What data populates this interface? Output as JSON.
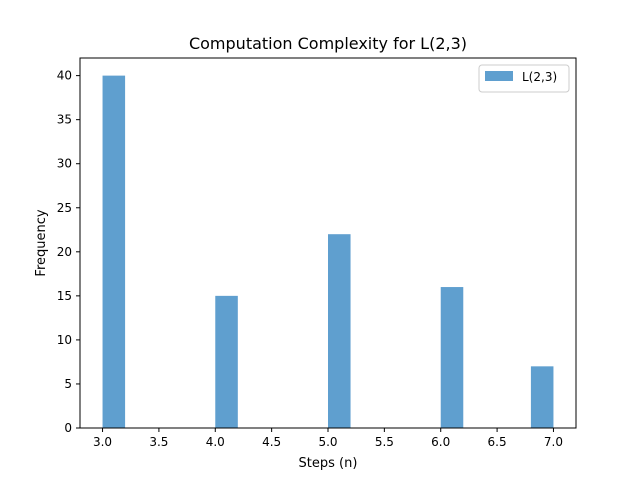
{
  "chart_data": {
    "type": "bar",
    "title": "Computation Complexity for L(2,3)",
    "xlabel": "Steps (n)",
    "ylabel": "Frequency",
    "xlim": [
      2.8,
      7.2
    ],
    "ylim": [
      0,
      42
    ],
    "xticks": [
      3.0,
      3.5,
      4.0,
      4.5,
      5.0,
      5.5,
      6.0,
      6.5,
      7.0
    ],
    "xtick_labels": [
      "3.0",
      "3.5",
      "4.0",
      "4.5",
      "5.0",
      "5.5",
      "6.0",
      "6.5",
      "7.0"
    ],
    "yticks": [
      0,
      5,
      10,
      15,
      20,
      25,
      30,
      35,
      40
    ],
    "ytick_labels": [
      "0",
      "5",
      "10",
      "15",
      "20",
      "25",
      "30",
      "35",
      "40"
    ],
    "bin_width": 0.2,
    "series": [
      {
        "name": "L(2,3)",
        "color": "#5f9fcf",
        "bins": [
          {
            "left": 3.0,
            "value": 40
          },
          {
            "left": 4.0,
            "value": 15
          },
          {
            "left": 5.0,
            "value": 22
          },
          {
            "left": 6.0,
            "value": 16
          },
          {
            "left": 6.8,
            "value": 7
          }
        ]
      }
    ],
    "legend": {
      "location": "top-right",
      "label": "L(2,3)"
    },
    "grid": false
  }
}
